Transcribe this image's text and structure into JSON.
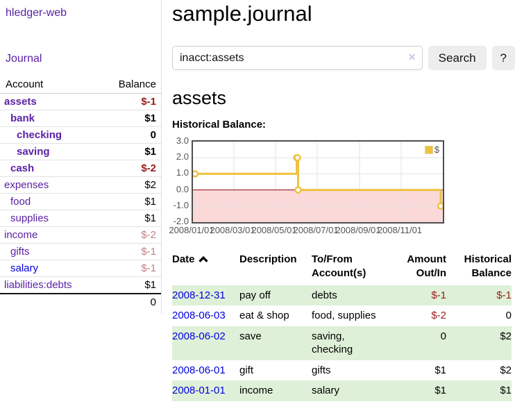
{
  "app": {
    "title": "hledger-web"
  },
  "colors": {
    "link_purple": "#5b21a6",
    "link_blue": "#0000dd",
    "negative_strong": "#9b1b1b",
    "negative_soft": "#c37f7f",
    "stripe_green": "#dff0d8",
    "chart_yellow": "#EDC240",
    "chart_negative_bg": "#fbd9d9",
    "zero_line": "#8b0000"
  },
  "sidebar": {
    "journal_label": "Journal",
    "account_header": "Account",
    "balance_header": "Balance",
    "total": "0",
    "rows": [
      {
        "account": "assets",
        "balance": "$-1",
        "indent": 1,
        "bold": true,
        "neg": "strong"
      },
      {
        "account": "bank",
        "balance": "$1",
        "indent": 2,
        "bold": true
      },
      {
        "account": "checking",
        "balance": "0",
        "indent": 3,
        "bold": true
      },
      {
        "account": "saving",
        "balance": "$1",
        "indent": 3,
        "bold": true
      },
      {
        "account": "cash",
        "balance": "$-2",
        "indent": 2,
        "bold": true,
        "neg": "strong"
      },
      {
        "account": "expenses",
        "balance": "$2",
        "indent": 1
      },
      {
        "account": "food",
        "balance": "$1",
        "indent": 2
      },
      {
        "account": "supplies",
        "balance": "$1",
        "indent": 2
      },
      {
        "account": "income",
        "balance": "$-2",
        "indent": 1,
        "neg": "soft"
      },
      {
        "account": "gifts",
        "balance": "$-1",
        "indent": 2,
        "neg": "soft"
      },
      {
        "account": "salary",
        "balance": "$-1",
        "indent": 2,
        "neg": "soft",
        "blue": true
      },
      {
        "account": "liabilities:debts",
        "balance": "$1",
        "indent": 1
      }
    ]
  },
  "main": {
    "title": "sample.journal",
    "search": {
      "value": "inacct:assets",
      "clear_icon": "✕",
      "button_label": "Search",
      "help_label": "?"
    },
    "account_heading": "assets",
    "chart_label": "Historical Balance:"
  },
  "chart_data": {
    "type": "line",
    "subtype": "step",
    "title": "Historical Balance",
    "series": [
      {
        "name": "$",
        "color": "#EDC240",
        "points": [
          {
            "date": "2008-01-01",
            "value": 1
          },
          {
            "date": "2008-06-01",
            "value": 2
          },
          {
            "date": "2008-06-02",
            "value": 2
          },
          {
            "date": "2008-06-03",
            "value": 0
          },
          {
            "date": "2008-12-31",
            "value": -1
          }
        ]
      }
    ],
    "x_range": [
      "2008-01-01",
      "2008-12-31"
    ],
    "ylim": [
      -2,
      3
    ],
    "yticks": [
      "3.0",
      "2.0",
      "1.0",
      "0.0",
      "-1.0",
      "-2.0"
    ],
    "xticks": [
      "2008/01/01",
      "2008/03/01",
      "2008/05/01",
      "2008/07/01",
      "2008/09/01",
      "2008/11/01"
    ],
    "legend_position": "top-right",
    "grid": true,
    "negative_region_color": "#fbd9d9",
    "zero_line_color": "#8b0000"
  },
  "register": {
    "headers": {
      "date": "Date",
      "description": "Description",
      "accounts": "To/From Account(s)",
      "amount": "Amount Out/In",
      "balance": "Historical Balance"
    },
    "rows": [
      {
        "date": "2008-12-31",
        "description": "pay off",
        "accounts": "debts",
        "amount": "$-1",
        "amount_negative": true,
        "balance": "$-1",
        "balance_negative": true
      },
      {
        "date": "2008-06-03",
        "description": "eat & shop",
        "accounts": "food, supplies",
        "amount": "$-2",
        "amount_negative": true,
        "balance": "0",
        "balance_negative": false
      },
      {
        "date": "2008-06-02",
        "description": "save",
        "accounts": "saving, checking",
        "amount": "0",
        "amount_negative": false,
        "balance": "$2",
        "balance_negative": false
      },
      {
        "date": "2008-06-01",
        "description": "gift",
        "accounts": "gifts",
        "amount": "$1",
        "amount_negative": false,
        "balance": "$2",
        "balance_negative": false
      },
      {
        "date": "2008-01-01",
        "description": "income",
        "accounts": "salary",
        "amount": "$1",
        "amount_negative": false,
        "balance": "$1",
        "balance_negative": false
      }
    ]
  }
}
